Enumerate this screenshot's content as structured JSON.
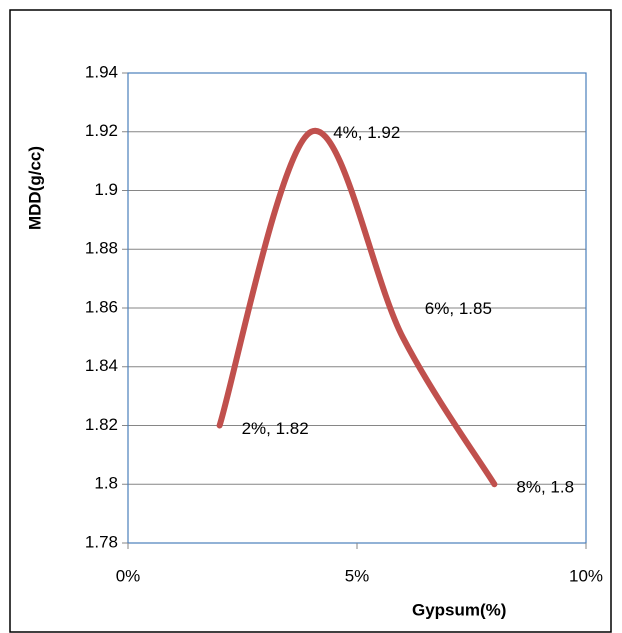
{
  "chart_data": {
    "type": "line",
    "smooth": true,
    "x_label": "Gypsum(%)",
    "y_label": "MDD(g/cc)",
    "x": [
      2,
      4,
      6,
      8
    ],
    "values": [
      1.82,
      1.92,
      1.85,
      1.8
    ],
    "value_labels": [
      "2%, 1.82",
      "4%, 1.92",
      "6%, 1.85",
      "8%, 1.8"
    ],
    "color": "#c0504d",
    "xlim": [
      0,
      10
    ],
    "xticks": [
      {
        "value": 0,
        "label": "0%"
      },
      {
        "value": 5,
        "label": "5%"
      },
      {
        "value": 10,
        "label": "10%"
      }
    ],
    "ylim": [
      1.78,
      1.94
    ],
    "yticks": [
      1.78,
      1.8,
      1.82,
      1.84,
      1.86,
      1.88,
      1.9,
      1.92,
      1.94
    ],
    "grid": true
  }
}
